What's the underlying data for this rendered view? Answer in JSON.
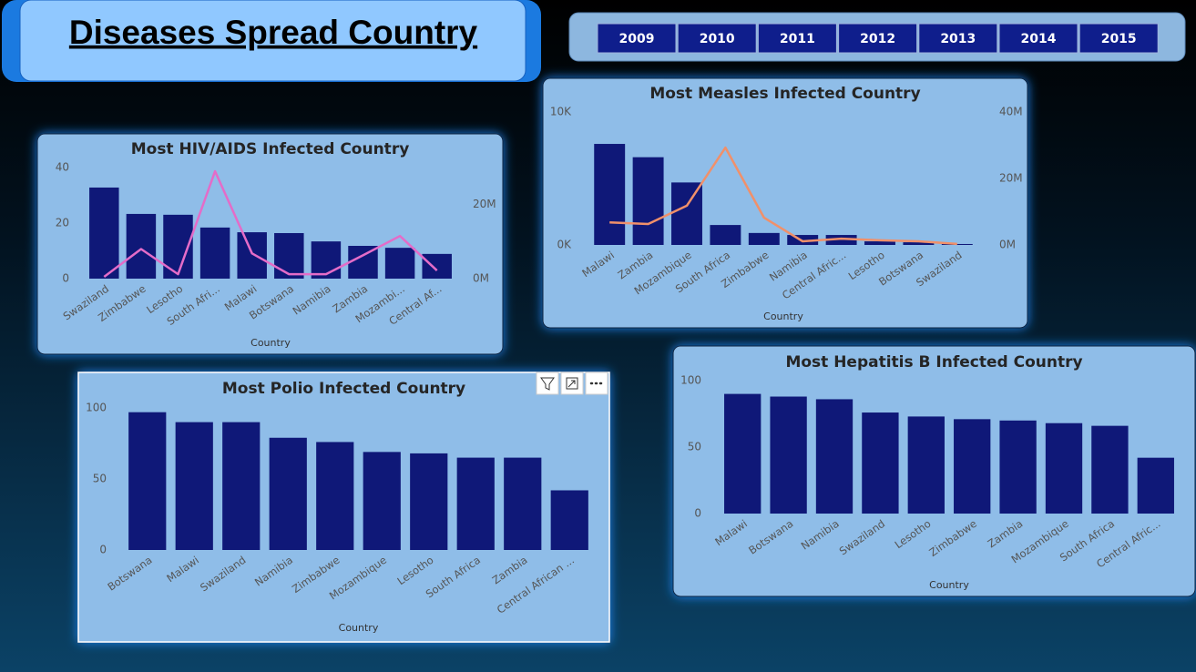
{
  "title": "Diseases Spread Country",
  "years": [
    "2009",
    "2010",
    "2011",
    "2012",
    "2013",
    "2014",
    "2015"
  ],
  "chart_data": [
    {
      "type": "combo",
      "title": "Most HIV/AIDS Infected Country",
      "x_label": "Country",
      "categories": [
        "Swaziland",
        "Zimbabwe",
        "Lesotho",
        "South Afri...",
        "Malawi",
        "Botswana",
        "Namibia",
        "Zambia",
        "Mozambi...",
        "Central Af..."
      ],
      "series": [
        {
          "color": "#0f1878",
          "values": [
            32.8,
            23.3,
            23.0,
            18.4,
            16.7,
            16.4,
            13.4,
            11.8,
            11.1,
            8.9
          ]
        },
        {
          "color": "#e46cc8",
          "axis": "y2",
          "values": [
            500000,
            8000000,
            1200000,
            29000000,
            6800000,
            1200000,
            1200000,
            6300000,
            11500000,
            2200000
          ]
        }
      ],
      "ylim": [
        0,
        40
      ],
      "yticks": [
        0,
        20,
        40
      ],
      "y2lim": [
        0,
        30000000
      ],
      "y2ticks": [
        {
          "value": 0,
          "label": "0M"
        },
        {
          "value": 20000000,
          "label": "20M"
        }
      ]
    },
    {
      "type": "combo",
      "title": "Most Measles Infected Country",
      "x_label": "Country",
      "categories": [
        "Malawi",
        "Zambia",
        "Mozambique",
        "South Africa",
        "Zimbabwe",
        "Namibia",
        "Central Afric...",
        "Lesotho",
        "Botswana",
        "Swaziland"
      ],
      "series": [
        {
          "color": "#0f1878",
          "values": [
            7600,
            6600,
            4700,
            1500,
            900,
            750,
            750,
            270,
            200,
            70
          ]
        },
        {
          "color": "#f0906a",
          "axis": "y2",
          "values": [
            6800000,
            6300000,
            11800000,
            29300000,
            8200000,
            1100000,
            1900000,
            1400000,
            1100000,
            300000
          ]
        }
      ],
      "ylim": [
        0,
        10000
      ],
      "yticks": [
        {
          "value": 0,
          "label": "0K"
        },
        {
          "value": 10000,
          "label": "10K"
        }
      ],
      "y2lim": [
        0,
        40000000
      ],
      "y2ticks": [
        {
          "value": 0,
          "label": "0M"
        },
        {
          "value": 20000000,
          "label": "20M"
        },
        {
          "value": 40000000,
          "label": "40M"
        }
      ]
    },
    {
      "type": "bar",
      "title": "Most Polio Infected Country",
      "x_label": "Country",
      "categories": [
        "Botswana",
        "Malawi",
        "Swaziland",
        "Namibia",
        "Zimbabwe",
        "Mozambique",
        "Lesotho",
        "South Africa",
        "Zambia",
        "Central African ..."
      ],
      "values": [
        97,
        90,
        90,
        79,
        76,
        69,
        68,
        65,
        65,
        42
      ],
      "color": "#0f1878",
      "ylim": [
        0,
        100
      ],
      "yticks": [
        0,
        50,
        100
      ]
    },
    {
      "type": "bar",
      "title": "Most Hepatitis B Infected Country",
      "x_label": "Country",
      "categories": [
        "Malawi",
        "Botswana",
        "Namibia",
        "Swaziland",
        "Lesotho",
        "Zimbabwe",
        "Zambia",
        "Mozambique",
        "South Africa",
        "Central Afric..."
      ],
      "values": [
        90,
        88,
        86,
        76,
        73,
        71,
        70,
        68,
        66,
        42
      ],
      "color": "#0f1878",
      "ylim": [
        0,
        100
      ],
      "yticks": [
        0,
        50,
        100
      ]
    }
  ]
}
